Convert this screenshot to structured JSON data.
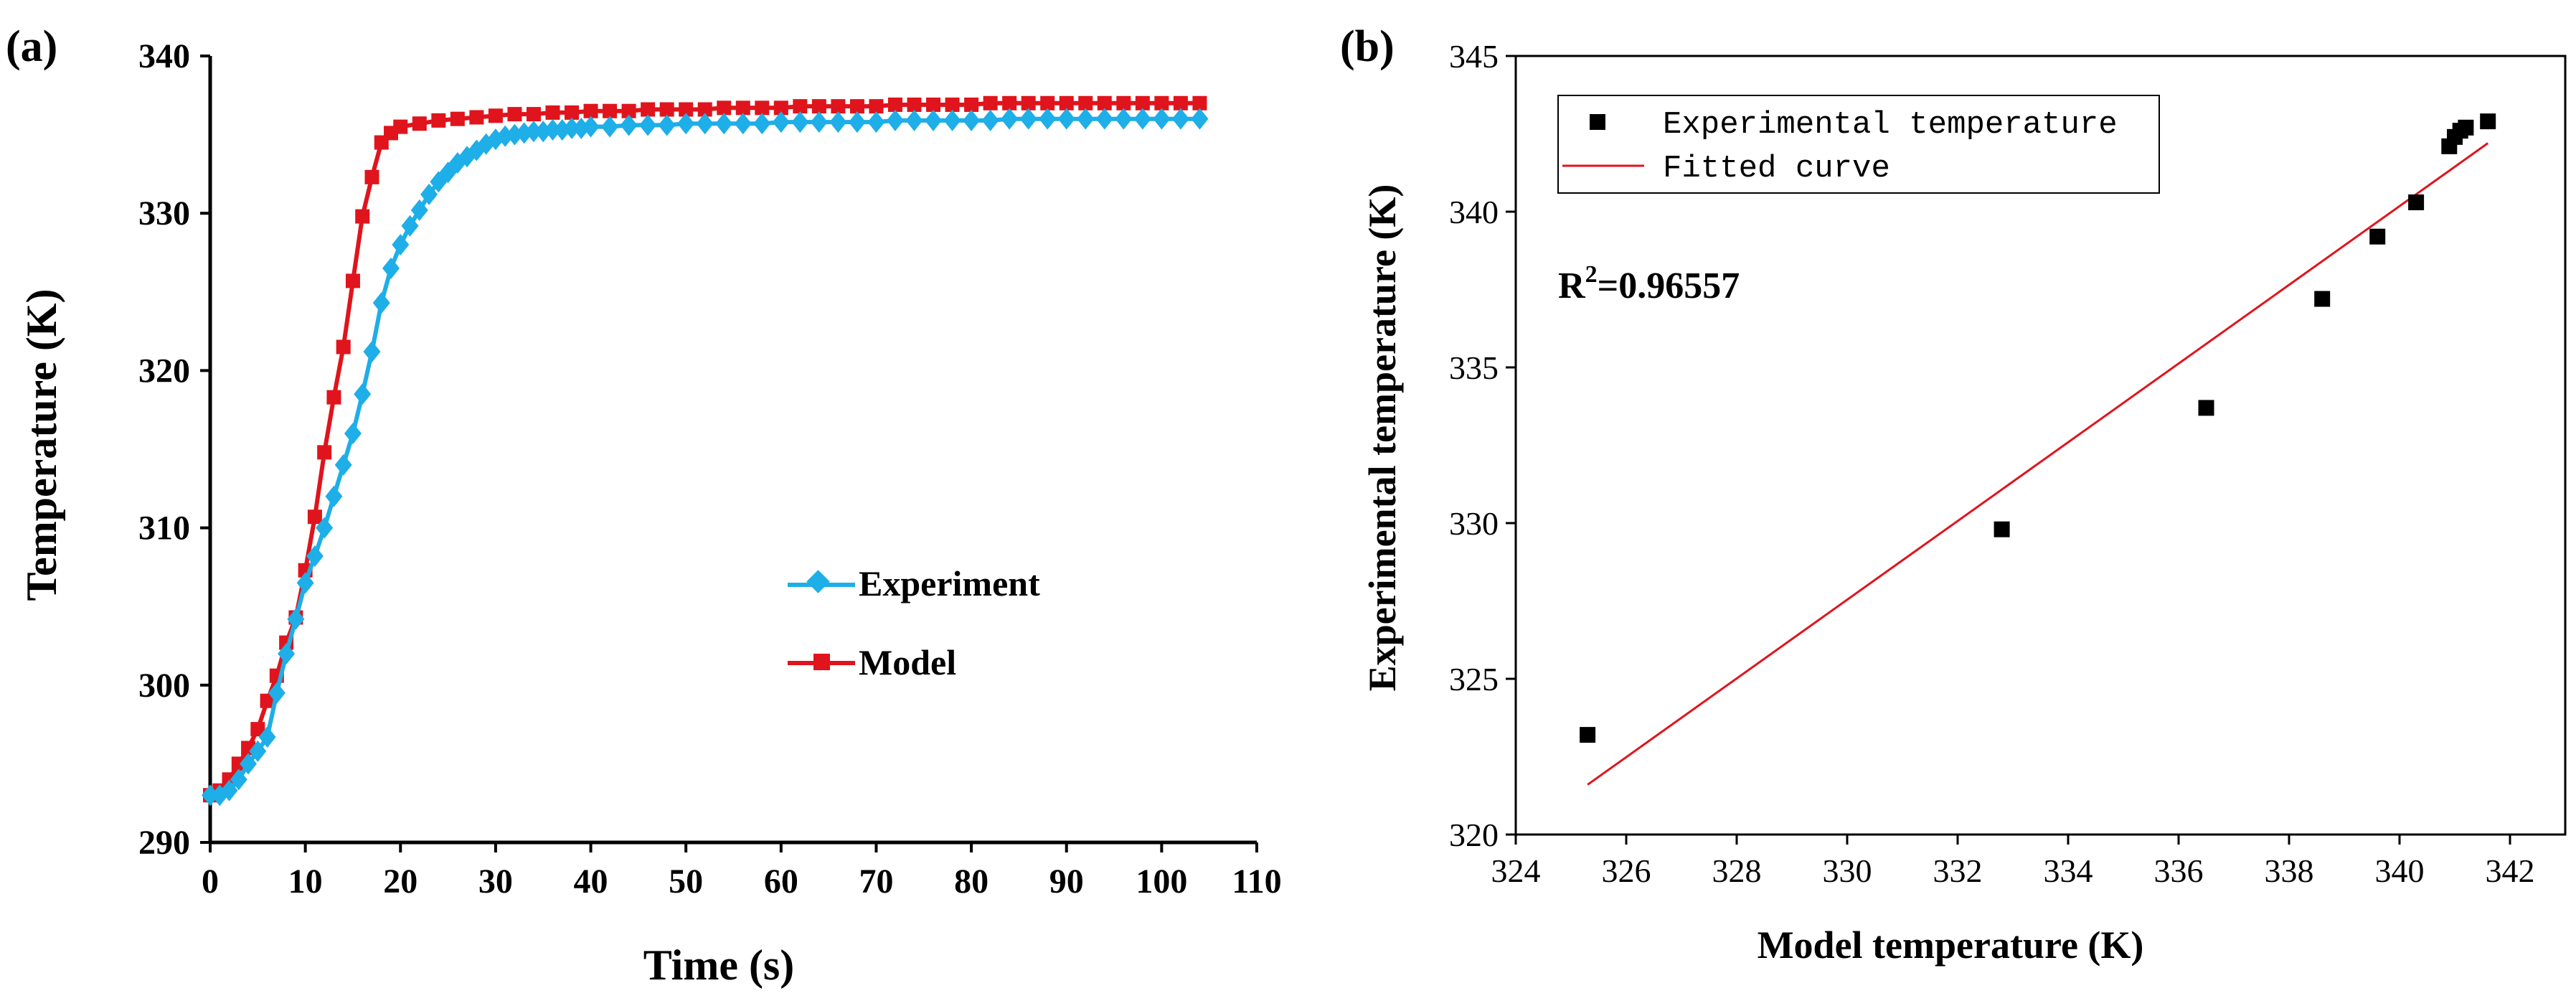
{
  "chart_data": [
    {
      "panel_label": "(a)",
      "type": "line",
      "xlabel": "Time (s)",
      "ylabel": "Temperature (K)",
      "xlim": [
        0,
        110
      ],
      "ylim": [
        290,
        340
      ],
      "x_ticks": [
        0,
        10,
        20,
        30,
        40,
        50,
        60,
        70,
        80,
        90,
        100,
        110
      ],
      "y_ticks": [
        290,
        300,
        310,
        320,
        330,
        340
      ],
      "series": [
        {
          "name": "Experiment",
          "color": "#1eaee8",
          "marker": "diamond",
          "x": [
            0,
            1,
            2,
            3,
            4,
            5,
            6,
            7,
            8,
            9,
            10,
            11,
            12,
            13,
            14,
            15,
            16,
            17,
            18,
            19,
            20,
            21,
            22,
            23,
            24,
            25,
            26,
            27,
            28,
            29,
            30,
            31,
            32,
            33,
            34,
            35,
            36,
            37,
            38,
            39,
            40,
            42,
            44,
            46,
            48,
            50,
            52,
            54,
            56,
            58,
            60,
            62,
            64,
            66,
            68,
            70,
            72,
            74,
            76,
            78,
            80,
            82,
            84,
            86,
            88,
            90,
            92,
            94,
            96,
            98,
            100,
            102,
            104
          ],
          "y": [
            293,
            293,
            293.3,
            294,
            295,
            295.8,
            296.7,
            299.5,
            302,
            304.2,
            306.5,
            308.2,
            310,
            312,
            314,
            316,
            318.5,
            321.2,
            324.3,
            326.5,
            328,
            329.2,
            330.2,
            331.2,
            332,
            332.6,
            333.2,
            333.6,
            334,
            334.4,
            334.7,
            334.9,
            335,
            335.1,
            335.2,
            335.2,
            335.3,
            335.3,
            335.4,
            335.4,
            335.5,
            335.5,
            335.6,
            335.6,
            335.6,
            335.7,
            335.7,
            335.7,
            335.7,
            335.7,
            335.8,
            335.8,
            335.8,
            335.8,
            335.8,
            335.8,
            335.9,
            335.9,
            335.9,
            335.9,
            335.9,
            335.9,
            336,
            336,
            336,
            336,
            336,
            336,
            336,
            336,
            336,
            336,
            336
          ]
        },
        {
          "name": "Model",
          "color": "#e0141c",
          "marker": "square",
          "x": [
            0,
            1,
            2,
            3,
            4,
            5,
            6,
            7,
            8,
            9,
            10,
            11,
            12,
            13,
            14,
            15,
            16,
            17,
            18,
            19,
            20,
            22,
            24,
            26,
            28,
            30,
            32,
            34,
            36,
            38,
            40,
            42,
            44,
            46,
            48,
            50,
            52,
            54,
            56,
            58,
            60,
            62,
            64,
            66,
            68,
            70,
            72,
            74,
            76,
            78,
            80,
            82,
            84,
            86,
            88,
            90,
            92,
            94,
            96,
            98,
            100,
            102,
            104
          ],
          "y": [
            293,
            293.3,
            294,
            295,
            296,
            297.2,
            299,
            300.6,
            302.7,
            304.3,
            307.3,
            310.7,
            314.8,
            318.3,
            321.5,
            325.7,
            329.8,
            332.3,
            334.5,
            335.1,
            335.5,
            335.7,
            335.9,
            336,
            336.1,
            336.2,
            336.3,
            336.3,
            336.4,
            336.4,
            336.5,
            336.5,
            336.5,
            336.6,
            336.6,
            336.6,
            336.6,
            336.7,
            336.7,
            336.7,
            336.7,
            336.8,
            336.8,
            336.8,
            336.8,
            336.8,
            336.9,
            336.9,
            336.9,
            336.9,
            336.9,
            337,
            337,
            337,
            337,
            337,
            337,
            337,
            337,
            337,
            337,
            337,
            337
          ]
        }
      ]
    },
    {
      "panel_label": "(b)",
      "type": "scatter",
      "xlabel": "Model temperature (K)",
      "ylabel": "Experimental temperature (K)",
      "xlim": [
        324,
        343
      ],
      "ylim": [
        320,
        345
      ],
      "x_ticks": [
        324,
        326,
        328,
        330,
        332,
        334,
        336,
        338,
        340,
        342
      ],
      "y_ticks": [
        320,
        325,
        330,
        335,
        340,
        345
      ],
      "annotation": {
        "base": "R",
        "sup": "2",
        "rest": "=0.96557"
      },
      "series": [
        {
          "name": "Experimental temperature",
          "color": "#000000",
          "marker": "square",
          "x": [
            325.3,
            332.8,
            336.5,
            338.6,
            339.6,
            340.3,
            340.9,
            341.0,
            341.1,
            341.2,
            341.6
          ],
          "y": [
            323.2,
            329.8,
            333.7,
            337.2,
            339.2,
            340.3,
            342.1,
            342.4,
            342.6,
            342.7,
            342.9
          ]
        },
        {
          "name": "Fitted curve",
          "color": "#e0141c",
          "type": "line",
          "x": [
            325.3,
            341.6
          ],
          "y": [
            321.6,
            342.2
          ]
        }
      ]
    }
  ]
}
